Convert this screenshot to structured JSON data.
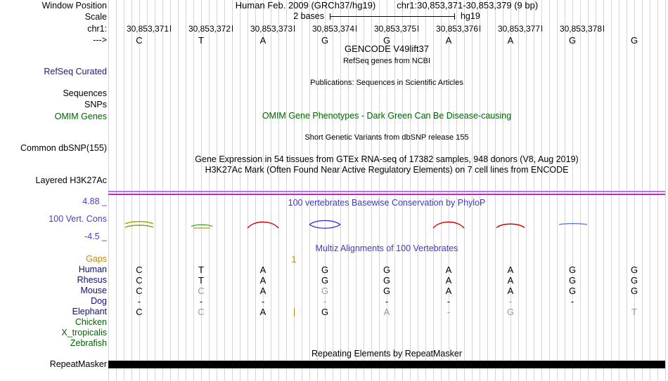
{
  "header": {
    "assembly_title": "Human Feb. 2009 (GRCh37/hg19)",
    "position_title": "chr1:30,853,371-30,853,379 (9 bp)",
    "scale_value": "2 bases",
    "scale_genome": "hg19"
  },
  "ruler": {
    "coordinates": [
      "30,853,371",
      "30,853,372",
      "30,853,373",
      "30,853,374",
      "30,853,375",
      "30,853,376",
      "30,853,377",
      "30,853,378"
    ],
    "bases": [
      "C",
      "T",
      "A",
      "G",
      "G",
      "A",
      "A",
      "G",
      "G"
    ]
  },
  "left_labels": [
    {
      "id": "window_position",
      "text": "Window Position",
      "color": "#000000"
    },
    {
      "id": "scale",
      "text": "Scale",
      "color": "#000000"
    },
    {
      "id": "chrom",
      "text": "chr1:",
      "color": "#000000"
    },
    {
      "id": "strand",
      "text": "--->",
      "color": "#000000"
    },
    {
      "id": "refseq_curated",
      "text": "RefSeq Curated",
      "color": "#1a1a8c"
    },
    {
      "id": "sequences",
      "text": "Sequences",
      "color": "#000000"
    },
    {
      "id": "snps",
      "text": "SNPs",
      "color": "#000000"
    },
    {
      "id": "omim_genes",
      "text": "OMIM Genes",
      "color": "#006400"
    },
    {
      "id": "common_dbsnp",
      "text": "Common dbSNP(155)",
      "color": "#000000"
    },
    {
      "id": "layered_h3k27ac",
      "text": "Layered H3K27Ac",
      "color": "#000000"
    },
    {
      "id": "cons_max",
      "text": "4.88 _",
      "color": "#4242c8"
    },
    {
      "id": "cons_label",
      "text": "100 Vert. Cons",
      "color": "#4242c8"
    },
    {
      "id": "cons_min",
      "text": "-4.5 _",
      "color": "#4242c8"
    },
    {
      "id": "gaps",
      "text": "Gaps",
      "color": "#c8860a"
    },
    {
      "id": "human",
      "text": "Human",
      "color": "#0e0e7a"
    },
    {
      "id": "rhesus",
      "text": "Rhesus",
      "color": "#0e0e7a"
    },
    {
      "id": "mouse",
      "text": "Mouse",
      "color": "#0e0e7a"
    },
    {
      "id": "dog",
      "text": "Dog",
      "color": "#0e0e7a"
    },
    {
      "id": "elephant",
      "text": "Elephant",
      "color": "#0e0e7a"
    },
    {
      "id": "chicken",
      "text": "Chicken",
      "color": "#006400"
    },
    {
      "id": "x_tropicalis",
      "text": "X_tropicalis",
      "color": "#006400"
    },
    {
      "id": "zebrafish",
      "text": "Zebrafish",
      "color": "#006400"
    },
    {
      "id": "repeatmasker",
      "text": "RepeatMasker",
      "color": "#000000"
    }
  ],
  "tracks": {
    "gencode_title": "GENCODE V49lift37",
    "gencode_subtitle": "RefSeq genes from NCBI",
    "publications_title": "Publications: Sequences in Scientific Articles",
    "omim_title": "OMIM Gene Phenotypes - Dark Green Can Be Disease-causing",
    "dbsnp_title": "Short Genetic Variants from dbSNP release 155",
    "gtex_title": "Gene Expression in 54 tissues from GTEx RNA-seq of 17382 samples, 948 donors (V8, Aug 2019)",
    "h3k27ac_title": "H3K27Ac Mark (Often Found Near Active Regulatory Elements) on 7 cell lines from ENCODE",
    "phylop_title": "100 vertebrates Basewise Conservation by PhyloP",
    "multiz_title": "Multiz Alignments of 100 Vertebrates",
    "repeat_title": "Repeating Elements by RepeatMasker"
  },
  "alignment": {
    "gap_count": "1",
    "species_rows": [
      {
        "id": "human",
        "seq": [
          "C",
          "T",
          "A",
          "G",
          "G",
          "A",
          "A",
          "G",
          "G"
        ],
        "gray": [
          false,
          false,
          false,
          false,
          false,
          false,
          false,
          false,
          false
        ]
      },
      {
        "id": "rhesus",
        "seq": [
          "C",
          "T",
          "A",
          "G",
          "G",
          "A",
          "A",
          "G",
          "G"
        ],
        "gray": [
          false,
          false,
          false,
          false,
          false,
          false,
          false,
          false,
          false
        ]
      },
      {
        "id": "mouse",
        "seq": [
          "C",
          "C",
          "A",
          "G",
          "G",
          "A",
          "A",
          "G",
          "G"
        ],
        "gray": [
          false,
          true,
          false,
          true,
          false,
          false,
          false,
          false,
          false
        ]
      },
      {
        "id": "dog",
        "seq": [
          "-",
          "-",
          "-",
          "-",
          "-",
          "-",
          "-",
          "-",
          ""
        ],
        "gray": [
          false,
          false,
          false,
          true,
          false,
          false,
          true,
          false,
          false
        ]
      },
      {
        "id": "elephant",
        "seq": [
          "C",
          "C",
          "A",
          "G",
          "A",
          "-",
          "G",
          "",
          "T"
        ],
        "gray": [
          false,
          true,
          false,
          false,
          true,
          true,
          true,
          false,
          true
        ],
        "insert_boundary": 3
      },
      {
        "id": "chicken",
        "seq": []
      },
      {
        "id": "x_tropicalis",
        "seq": []
      },
      {
        "id": "zebrafish",
        "seq": []
      }
    ]
  },
  "colors": {
    "h3k27ac_violet": "#b27ae0",
    "h3k27ac_magenta": "#cc22cc",
    "repeat_bar": "#000000",
    "gap_orange": "#c8860a",
    "gray_base": "#9a9a9a",
    "conservation_blue": "#4242c8",
    "track_title_blue": "#3c3cc0",
    "omim_green": "#006400"
  }
}
